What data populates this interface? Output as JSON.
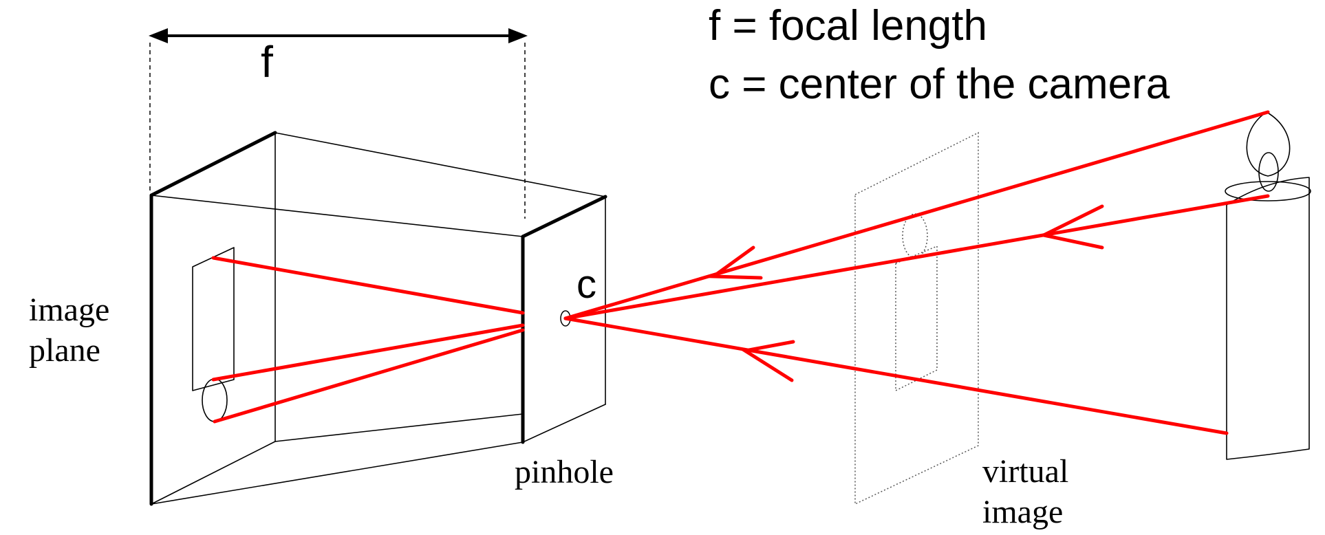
{
  "legend": {
    "focal_length": "f = focal length",
    "camera_center": "c = center of the camera"
  },
  "labels": {
    "f": "f",
    "c": "c",
    "image_plane_line1": "image",
    "image_plane_line2": "plane",
    "pinhole": "pinhole",
    "virtual_image_line1": "virtual",
    "virtual_image_line2": "image"
  },
  "colors": {
    "ray": "#ff0000",
    "lines": "#000000",
    "background": "#ffffff"
  }
}
